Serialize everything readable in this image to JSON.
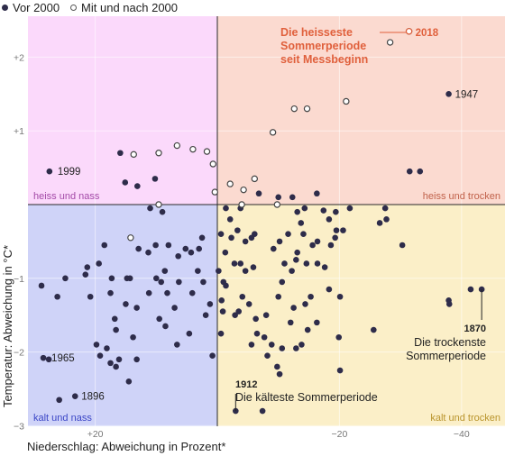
{
  "legend": {
    "before_label": "Vor 2000",
    "after_label": "Mit und nach 2000"
  },
  "colors": {
    "before_dot": "#2e2c4a",
    "after_dot_fill": "#ffffff",
    "after_dot_stroke": "#444444",
    "quadrant_hot_wet": "#fbd9fb",
    "quadrant_hot_dry": "#fbdad0",
    "quadrant_cold_wet": "#cfd3f8",
    "quadrant_cold_dry": "#fbefc8",
    "label_hot_wet": "#a34aa7",
    "label_hot_dry": "#c0614a",
    "label_cold_wet": "#3b46c6",
    "label_cold_dry": "#b9942c",
    "annotation_highlight": "#e0603c"
  },
  "chart_data": {
    "type": "scatter",
    "xlabel": "Niederschlag: Abweichung in Prozent*",
    "ylabel": "Temperatur: Abweichung in °C*",
    "xlim": [
      30,
      -44
    ],
    "ylim": [
      -3,
      2.4
    ],
    "x_reversed": true,
    "x_ticks": [
      {
        "value": 20,
        "label": "+20"
      },
      {
        "value": -20,
        "label": "−20"
      },
      {
        "value": -40,
        "label": "−40"
      }
    ],
    "y_ticks": [
      {
        "value": 2,
        "label": "+2"
      },
      {
        "value": 1,
        "label": "+1"
      },
      {
        "value": -1,
        "label": "−1"
      },
      {
        "value": -2,
        "label": "−2"
      },
      {
        "value": -3,
        "label": "−3"
      }
    ],
    "quadrant_labels": {
      "hot_wet": "heiss und nass",
      "hot_dry": "heiss und trocken",
      "cold_wet": "kalt und nass",
      "cold_dry": "kalt und trocken"
    },
    "series": [
      {
        "name": "Vor 2000",
        "points": [
          [
            -41.5,
            -1.15
          ],
          [
            -37.9,
            1.5
          ],
          [
            -33.2,
            0.45
          ],
          [
            -31.5,
            0.45
          ],
          [
            -30.3,
            -0.55
          ],
          [
            -27.7,
            -0.2
          ],
          [
            -26.6,
            -0.25
          ],
          [
            -27.5,
            -0.05
          ],
          [
            -37.9,
            -1.3
          ],
          [
            -38.0,
            -1.35
          ],
          [
            -25.6,
            -1.7
          ],
          [
            -17.4,
            -0.08
          ],
          [
            -16.3,
            0.15
          ],
          [
            -21.7,
            -0.05
          ],
          [
            -20.6,
            -0.35
          ],
          [
            -19.3,
            -0.45
          ],
          [
            -18.3,
            -0.2
          ],
          [
            -18.6,
            -0.55
          ],
          [
            -15.6,
            -0.55
          ],
          [
            -16.4,
            -0.8
          ],
          [
            -17.6,
            -0.85
          ],
          [
            -20.1,
            -1.25
          ],
          [
            -19.4,
            -0.1
          ],
          [
            -20.1,
            -2.25
          ],
          [
            -18.3,
            -1.15
          ],
          [
            -19.9,
            -1.8
          ],
          [
            -19.5,
            -0.35
          ],
          [
            -14.3,
            -0.05
          ],
          [
            -13.1,
            -0.1
          ],
          [
            -12.3,
            0.1
          ],
          [
            -10.0,
            0.1
          ],
          [
            -13.7,
            -0.25
          ],
          [
            -14.1,
            -0.4
          ],
          [
            -16.4,
            -0.5
          ],
          [
            -14.6,
            -0.8
          ],
          [
            -13.1,
            -0.65
          ],
          [
            -12.9,
            -0.75
          ],
          [
            -11.6,
            -0.4
          ],
          [
            -10.2,
            -0.5
          ],
          [
            -9.2,
            -0.6
          ],
          [
            -11.0,
            -0.8
          ],
          [
            -12.2,
            -0.9
          ],
          [
            -10.6,
            -1.05
          ],
          [
            -10.0,
            -1.25
          ],
          [
            -12.0,
            -1.6
          ],
          [
            -13.8,
            -1.9
          ],
          [
            -16.3,
            -1.6
          ],
          [
            -14.8,
            -1.7
          ],
          [
            -12.9,
            -1.95
          ],
          [
            -10.6,
            -1.95
          ],
          [
            -8.9,
            -1.9
          ],
          [
            -8.2,
            -2.05
          ],
          [
            -9.8,
            -2.2
          ],
          [
            -10.2,
            -2.3
          ],
          [
            -15.3,
            -1.25
          ],
          [
            -14.4,
            -1.35
          ],
          [
            -12.5,
            -1.4
          ],
          [
            -6.8,
            0.15
          ],
          [
            -6.1,
            -0.4
          ],
          [
            -5.6,
            -0.45
          ],
          [
            -4.6,
            -0.5
          ],
          [
            -3.3,
            -0.35
          ],
          [
            -2.3,
            -0.45
          ],
          [
            -0.6,
            -0.4
          ],
          [
            -3.8,
            -0.05
          ],
          [
            -2.1,
            -0.2
          ],
          [
            -1.4,
            -0.05
          ],
          [
            -1.3,
            -0.65
          ],
          [
            -3.8,
            -0.8
          ],
          [
            -5.9,
            -0.85
          ],
          [
            -4.6,
            -0.9
          ],
          [
            -2.8,
            -0.8
          ],
          [
            -0.2,
            -0.9
          ],
          [
            -1.4,
            -1.1
          ],
          [
            -4.1,
            -1.25
          ],
          [
            -5.2,
            -1.35
          ],
          [
            -6.3,
            -1.55
          ],
          [
            -6.5,
            -1.75
          ],
          [
            -5.6,
            -1.9
          ],
          [
            -2.9,
            -1.5
          ],
          [
            -0.9,
            -1.45
          ],
          [
            -0.6,
            -1.75
          ],
          [
            0.8,
            -2.05
          ],
          [
            1.2,
            -1.35
          ],
          [
            -7.4,
            -2.8
          ],
          [
            -7.7,
            -1.8
          ],
          [
            -8.0,
            -1.5
          ],
          [
            -0.7,
            -1.3
          ],
          [
            -1.0,
            -1.05
          ],
          [
            -3.5,
            -1.45
          ],
          [
            3.0,
            -0.6
          ],
          [
            2.5,
            -0.45
          ],
          [
            4.3,
            -0.65
          ],
          [
            3.2,
            -0.9
          ],
          [
            2.3,
            -1.05
          ],
          [
            1.9,
            -1.5
          ],
          [
            5.2,
            -0.6
          ],
          [
            6.4,
            -0.7
          ],
          [
            8.0,
            -0.55
          ],
          [
            8.6,
            -0.9
          ],
          [
            6.3,
            -1.05
          ],
          [
            4.1,
            -1.2
          ],
          [
            7.0,
            -1.4
          ],
          [
            8.2,
            -1.2
          ],
          [
            4.6,
            -1.75
          ],
          [
            6.6,
            -1.9
          ],
          [
            8.5,
            -1.65
          ],
          [
            10.1,
            -0.55
          ],
          [
            10.0,
            -1.0
          ],
          [
            11.3,
            -0.65
          ],
          [
            12.9,
            -0.6
          ],
          [
            11.2,
            -1.2
          ],
          [
            13.2,
            -1.4
          ],
          [
            14.8,
            -1.0
          ],
          [
            18.5,
            -0.55
          ],
          [
            19.4,
            -0.8
          ],
          [
            21.3,
            -0.85
          ],
          [
            21.6,
            -0.95
          ],
          [
            20.8,
            -1.25
          ],
          [
            17.5,
            -1.2
          ],
          [
            15.0,
            -1.35
          ],
          [
            13.8,
            -1.8
          ],
          [
            16.6,
            -1.7
          ],
          [
            18.1,
            -1.95
          ],
          [
            19.2,
            -2.05
          ],
          [
            19.8,
            -1.9
          ],
          [
            17.5,
            -2.15
          ],
          [
            16.1,
            -2.1
          ],
          [
            13.2,
            -2.1
          ],
          [
            14.5,
            -2.4
          ],
          [
            16.6,
            -2.2
          ],
          [
            16.8,
            -1.55
          ],
          [
            26.2,
            -1.25
          ],
          [
            24.9,
            -1.0
          ],
          [
            28.8,
            -1.1
          ],
          [
            27.6,
            -2.1
          ],
          [
            25.9,
            -2.65
          ],
          [
            17.3,
            -1.0
          ],
          [
            14.3,
            -1.0
          ],
          [
            9.0,
            -0.1
          ],
          [
            11.0,
            -0.05
          ],
          [
            15.9,
            0.7
          ],
          [
            15.1,
            0.3
          ],
          [
            13.1,
            0.25
          ],
          [
            10.2,
            0.35
          ],
          [
            9.5,
            -1.55
          ],
          [
            9.2,
            -1.05
          ]
        ]
      },
      {
        "name": "Mit und nach 2000",
        "points": [
          [
            -31.4,
            2.35
          ],
          [
            -28.3,
            2.2
          ],
          [
            -21.1,
            1.4
          ],
          [
            -14.7,
            1.3
          ],
          [
            -12.6,
            1.3
          ],
          [
            -9.1,
            0.98
          ],
          [
            -6.1,
            0.35
          ],
          [
            -4.3,
            0.2
          ],
          [
            -2.1,
            0.28
          ],
          [
            -4.0,
            0.0
          ],
          [
            -9.8,
            0.0
          ],
          [
            0.4,
            0.17
          ],
          [
            0.7,
            0.55
          ],
          [
            1.7,
            0.72
          ],
          [
            4.0,
            0.75
          ],
          [
            6.6,
            0.8
          ],
          [
            9.6,
            0.7
          ],
          [
            13.7,
            0.68
          ],
          [
            9.6,
            0.0
          ],
          [
            14.2,
            -0.45
          ]
        ]
      }
    ],
    "annotations": {
      "a1947_year": "1947",
      "a1999_year": "1999",
      "a1965_year": "1965",
      "a1896_year": "1896",
      "a1912_year": "1912",
      "a1912_text": "Die kälteste Sommerperiode",
      "a1870_year": "1870",
      "a1870_line1": "Die trockenste",
      "a1870_line2": "Sommerperiode",
      "a2018_year": "2018",
      "a2018_line1": "Die heisseste",
      "a2018_line2": "Sommerperiode",
      "a2018_line3": "seit Messbeginn"
    }
  }
}
